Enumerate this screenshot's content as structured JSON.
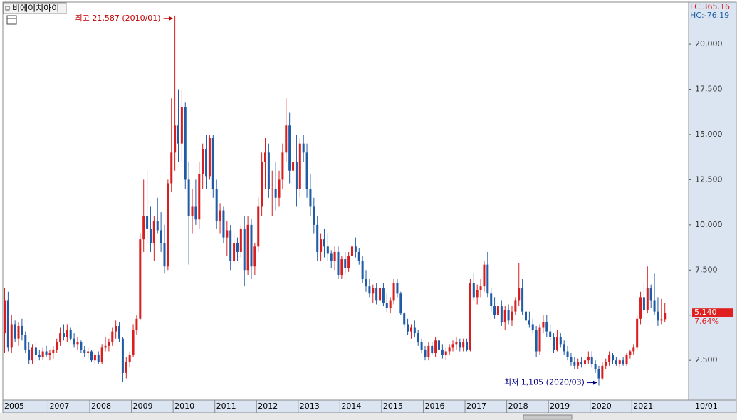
{
  "chart_data": {
    "type": "candlestick",
    "title": "비에이치아이",
    "indicators": [
      "LC:365.16",
      "HC:-76.19"
    ],
    "high_annotation": "최고 21,587 (2010/01)",
    "low_annotation": "최저 1,105 (2020/03)",
    "last_price_label": "5,140",
    "change_label": "7.64%",
    "date_label": "10/01",
    "up_color": "#d81e1e",
    "down_color": "#1f5ba6",
    "ylim": [
      300,
      22250
    ],
    "yticks": [
      {
        "value": 2500,
        "label": "2,500"
      },
      {
        "value": 5000,
        "label": "5,000"
      },
      {
        "value": 7500,
        "label": "7,500"
      },
      {
        "value": 10000,
        "label": "10,000"
      },
      {
        "value": 12500,
        "label": "12,500"
      },
      {
        "value": 15000,
        "label": "15,000"
      },
      {
        "value": 17500,
        "label": "17,500"
      },
      {
        "value": 20000,
        "label": "20,000"
      }
    ],
    "categories": [
      "2005",
      null,
      null,
      null,
      null,
      null,
      null,
      null,
      null,
      null,
      null,
      null,
      null,
      "2007",
      null,
      null,
      null,
      null,
      null,
      null,
      null,
      null,
      null,
      null,
      null,
      "2008",
      null,
      null,
      null,
      null,
      null,
      null,
      null,
      null,
      null,
      null,
      null,
      "2009",
      null,
      null,
      null,
      null,
      null,
      null,
      null,
      null,
      null,
      null,
      null,
      "2010",
      null,
      null,
      null,
      null,
      null,
      null,
      null,
      null,
      null,
      null,
      null,
      "2011",
      null,
      null,
      null,
      null,
      null,
      null,
      null,
      null,
      null,
      null,
      null,
      "2012",
      null,
      null,
      null,
      null,
      null,
      null,
      null,
      null,
      null,
      null,
      null,
      "2013",
      null,
      null,
      null,
      null,
      null,
      null,
      null,
      null,
      null,
      null,
      null,
      "2014",
      null,
      null,
      null,
      null,
      null,
      null,
      null,
      null,
      null,
      null,
      null,
      "2015",
      null,
      null,
      null,
      null,
      null,
      null,
      null,
      null,
      null,
      null,
      null,
      "2016",
      null,
      null,
      null,
      null,
      null,
      null,
      null,
      null,
      null,
      null,
      null,
      "2017",
      null,
      null,
      null,
      null,
      null,
      null,
      null,
      null,
      null,
      null,
      null,
      "2018",
      null,
      null,
      null,
      null,
      null,
      null,
      null,
      null,
      null,
      null,
      null,
      "2019",
      null,
      null,
      null,
      null,
      null,
      null,
      null,
      null,
      null,
      null,
      null,
      "2020",
      null,
      null,
      null,
      null,
      null,
      null,
      null,
      null,
      null,
      null,
      null,
      "2021",
      null,
      null,
      null,
      null,
      null,
      null,
      null,
      null,
      null
    ],
    "ohlc": [
      [
        4000,
        6500,
        2900,
        5800
      ],
      [
        5800,
        6300,
        3000,
        3200
      ],
      [
        3200,
        5000,
        2900,
        4500
      ],
      [
        4500,
        4700,
        3500,
        3700
      ],
      [
        3700,
        4600,
        3300,
        4400
      ],
      [
        4400,
        4800,
        3600,
        3900
      ],
      [
        3900,
        4100,
        2900,
        3100
      ],
      [
        3100,
        3500,
        2300,
        2500
      ],
      [
        2500,
        3400,
        2300,
        3200
      ],
      [
        3200,
        3500,
        2500,
        2800
      ],
      [
        2800,
        3100,
        2500,
        2700
      ],
      [
        2700,
        3200,
        2500,
        3000
      ],
      [
        3000,
        3300,
        2700,
        2800
      ],
      [
        2800,
        3100,
        2500,
        2900
      ],
      [
        2900,
        3300,
        2600,
        3100
      ],
      [
        3100,
        3700,
        2900,
        3500
      ],
      [
        3500,
        4300,
        3300,
        4000
      ],
      [
        4000,
        4500,
        3600,
        3800
      ],
      [
        3800,
        4500,
        3500,
        4200
      ],
      [
        4200,
        4300,
        3600,
        3700
      ],
      [
        3700,
        4000,
        3200,
        3400
      ],
      [
        3400,
        3800,
        3100,
        3500
      ],
      [
        3500,
        3600,
        2900,
        3100
      ],
      [
        3100,
        3300,
        2700,
        2900
      ],
      [
        2900,
        3200,
        2600,
        3000
      ],
      [
        3000,
        3100,
        2400,
        2500
      ],
      [
        2500,
        2900,
        2300,
        2800
      ],
      [
        2800,
        3000,
        2300,
        2400
      ],
      [
        2400,
        3400,
        2300,
        3200
      ],
      [
        3200,
        3800,
        3000,
        3300
      ],
      [
        3300,
        3700,
        3000,
        3500
      ],
      [
        3500,
        4300,
        3300,
        4100
      ],
      [
        4100,
        4700,
        3700,
        4400
      ],
      [
        4400,
        4600,
        3500,
        3700
      ],
      [
        3700,
        3800,
        1300,
        1800
      ],
      [
        1800,
        2700,
        1500,
        2400
      ],
      [
        2400,
        3000,
        2100,
        2800
      ],
      [
        2800,
        4500,
        2700,
        4200
      ],
      [
        4200,
        5000,
        3900,
        4800
      ],
      [
        4800,
        9500,
        4700,
        9200
      ],
      [
        9200,
        12500,
        8500,
        10500
      ],
      [
        10500,
        13000,
        9000,
        9800
      ],
      [
        9800,
        11000,
        8500,
        9000
      ],
      [
        9000,
        10500,
        8000,
        10200
      ],
      [
        10200,
        11500,
        9500,
        9700
      ],
      [
        9700,
        10700,
        8500,
        9000
      ],
      [
        9000,
        10000,
        7300,
        7700
      ],
      [
        7700,
        12500,
        7500,
        12300
      ],
      [
        12300,
        17000,
        11800,
        14000
      ],
      [
        14000,
        21587,
        13000,
        15500
      ],
      [
        15500,
        17500,
        13500,
        14500
      ],
      [
        14500,
        17500,
        13500,
        16500
      ],
      [
        16500,
        16800,
        12000,
        12500
      ],
      [
        12500,
        13500,
        7800,
        10500
      ],
      [
        10500,
        12000,
        9500,
        11000
      ],
      [
        11000,
        12500,
        10000,
        10300
      ],
      [
        10300,
        13500,
        9800,
        12800
      ],
      [
        12800,
        14500,
        12000,
        14200
      ],
      [
        14200,
        15000,
        12000,
        12700
      ],
      [
        12700,
        15000,
        12500,
        14800
      ],
      [
        14800,
        15000,
        11500,
        12000
      ],
      [
        12000,
        12500,
        9800,
        10200
      ],
      [
        10200,
        11200,
        9500,
        10800
      ],
      [
        10800,
        11000,
        9000,
        9300
      ],
      [
        9300,
        10200,
        8300,
        9700
      ],
      [
        9700,
        10000,
        7500,
        8000
      ],
      [
        8000,
        9500,
        7800,
        9000
      ],
      [
        9000,
        9300,
        8000,
        8500
      ],
      [
        8500,
        10000,
        8200,
        9800
      ],
      [
        9800,
        10500,
        6600,
        7500
      ],
      [
        7500,
        10500,
        7200,
        10000
      ],
      [
        10000,
        10300,
        7000,
        7700
      ],
      [
        7700,
        9000,
        7200,
        8800
      ],
      [
        8800,
        11500,
        8500,
        11000
      ],
      [
        11000,
        14000,
        10500,
        13500
      ],
      [
        13500,
        14800,
        12000,
        14000
      ],
      [
        14000,
        14500,
        11500,
        12000
      ],
      [
        12000,
        13000,
        10500,
        12000
      ],
      [
        12000,
        13500,
        10800,
        11500
      ],
      [
        11500,
        13000,
        11000,
        12500
      ],
      [
        12500,
        14500,
        12000,
        14000
      ],
      [
        14000,
        17000,
        13500,
        15500
      ],
      [
        15500,
        16200,
        12300,
        13000
      ],
      [
        13000,
        14800,
        12500,
        13500
      ],
      [
        13500,
        15000,
        11000,
        12000
      ],
      [
        12000,
        14800,
        11500,
        14500
      ],
      [
        14500,
        15000,
        13500,
        14000
      ],
      [
        14000,
        14500,
        11500,
        12000
      ],
      [
        12000,
        12800,
        10500,
        11000
      ],
      [
        11000,
        11500,
        9500,
        10000
      ],
      [
        10000,
        10500,
        8000,
        8500
      ],
      [
        8500,
        9500,
        8000,
        9200
      ],
      [
        9200,
        9800,
        8200,
        8800
      ],
      [
        8800,
        9500,
        8000,
        8400
      ],
      [
        8400,
        8600,
        7600,
        8000
      ],
      [
        8000,
        8800,
        7500,
        8500
      ],
      [
        8500,
        8800,
        7000,
        7200
      ],
      [
        7200,
        8300,
        7000,
        8100
      ],
      [
        8100,
        8500,
        7300,
        7600
      ],
      [
        7600,
        8500,
        7400,
        8300
      ],
      [
        8300,
        9000,
        8000,
        8800
      ],
      [
        8800,
        9300,
        8200,
        8500
      ],
      [
        8500,
        8700,
        7800,
        8000
      ],
      [
        8000,
        8300,
        6800,
        7000
      ],
      [
        7000,
        7500,
        6300,
        6600
      ],
      [
        6600,
        7000,
        6000,
        6200
      ],
      [
        6200,
        6700,
        5700,
        6500
      ],
      [
        6500,
        6800,
        5600,
        5800
      ],
      [
        5800,
        6700,
        5600,
        6500
      ],
      [
        6500,
        6800,
        5500,
        5700
      ],
      [
        5700,
        6200,
        5200,
        5400
      ],
      [
        5400,
        6000,
        5100,
        5800
      ],
      [
        5800,
        7000,
        5600,
        6800
      ],
      [
        6800,
        7000,
        6000,
        6200
      ],
      [
        6200,
        6300,
        5000,
        5100
      ],
      [
        5100,
        5200,
        4300,
        4500
      ],
      [
        4500,
        4800,
        3900,
        4100
      ],
      [
        4100,
        4500,
        3700,
        4300
      ],
      [
        4300,
        4700,
        3800,
        4000
      ],
      [
        4000,
        4200,
        3300,
        3500
      ],
      [
        3500,
        3700,
        2900,
        3100
      ],
      [
        3100,
        3300,
        2500,
        2700
      ],
      [
        2700,
        3500,
        2500,
        3300
      ],
      [
        3300,
        3500,
        2800,
        2900
      ],
      [
        2900,
        3800,
        2700,
        3600
      ],
      [
        3600,
        3800,
        3000,
        3100
      ],
      [
        3100,
        3400,
        2600,
        2800
      ],
      [
        2800,
        3200,
        2500,
        3000
      ],
      [
        3000,
        3400,
        2800,
        3200
      ],
      [
        3200,
        3600,
        3000,
        3400
      ],
      [
        3400,
        3800,
        3100,
        3500
      ],
      [
        3500,
        3700,
        3000,
        3200
      ],
      [
        3200,
        3700,
        3000,
        3500
      ],
      [
        3500,
        3700,
        3000,
        3100
      ],
      [
        3100,
        7000,
        3000,
        6800
      ],
      [
        6800,
        7300,
        5800,
        6000
      ],
      [
        6000,
        6700,
        5600,
        6400
      ],
      [
        6400,
        7000,
        6000,
        6600
      ],
      [
        6600,
        8000,
        6300,
        7800
      ],
      [
        7800,
        8500,
        6000,
        6200
      ],
      [
        6200,
        6500,
        5200,
        5500
      ],
      [
        5500,
        6000,
        4800,
        5000
      ],
      [
        5000,
        5800,
        4700,
        5500
      ],
      [
        5500,
        5800,
        4400,
        4600
      ],
      [
        4600,
        5500,
        4200,
        5300
      ],
      [
        5300,
        5600,
        4500,
        4700
      ],
      [
        4700,
        5500,
        4400,
        5200
      ],
      [
        5200,
        6000,
        5000,
        5800
      ],
      [
        5800,
        7900,
        5500,
        6500
      ],
      [
        6500,
        7000,
        5000,
        5200
      ],
      [
        5200,
        5400,
        4500,
        4700
      ],
      [
        4700,
        5200,
        4300,
        4500
      ],
      [
        4500,
        4800,
        4000,
        4200
      ],
      [
        4200,
        4400,
        2700,
        3000
      ],
      [
        3000,
        4500,
        2800,
        4300
      ],
      [
        4300,
        5000,
        4000,
        4600
      ],
      [
        4600,
        5000,
        3800,
        4100
      ],
      [
        4100,
        4500,
        3600,
        3800
      ],
      [
        3800,
        4000,
        2900,
        3100
      ],
      [
        3100,
        4200,
        3000,
        3800
      ],
      [
        3800,
        4000,
        3200,
        3400
      ],
      [
        3400,
        3600,
        2800,
        3000
      ],
      [
        3000,
        3300,
        2500,
        2700
      ],
      [
        2700,
        2900,
        2200,
        2400
      ],
      [
        2400,
        2700,
        2000,
        2200
      ],
      [
        2200,
        2600,
        2000,
        2400
      ],
      [
        2400,
        2700,
        2100,
        2300
      ],
      [
        2300,
        2600,
        2000,
        2500
      ],
      [
        2500,
        3000,
        2300,
        2700
      ],
      [
        2700,
        3000,
        2100,
        2300
      ],
      [
        2300,
        2500,
        1800,
        2000
      ],
      [
        2000,
        2200,
        1105,
        1500
      ],
      [
        1500,
        2400,
        1400,
        2200
      ],
      [
        2200,
        2600,
        2000,
        2400
      ],
      [
        2400,
        3000,
        2200,
        2800
      ],
      [
        2800,
        2900,
        2300,
        2500
      ],
      [
        2500,
        2700,
        2200,
        2300
      ],
      [
        2300,
        2600,
        2100,
        2500
      ],
      [
        2500,
        2700,
        2200,
        2300
      ],
      [
        2300,
        2900,
        2200,
        2800
      ],
      [
        2800,
        3100,
        2600,
        3000
      ],
      [
        3000,
        3400,
        2800,
        3200
      ],
      [
        3200,
        5000,
        3100,
        4800
      ],
      [
        4800,
        6300,
        4500,
        6000
      ],
      [
        6000,
        6800,
        5000,
        5300
      ],
      [
        5300,
        7700,
        5100,
        6500
      ],
      [
        6500,
        6700,
        5400,
        5800
      ],
      [
        5800,
        7300,
        5000,
        5200
      ],
      [
        5200,
        6000,
        4400,
        4700
      ],
      [
        4700,
        5900,
        4500,
        4775
      ],
      [
        4775,
        5700,
        4600,
        5140
      ]
    ]
  }
}
